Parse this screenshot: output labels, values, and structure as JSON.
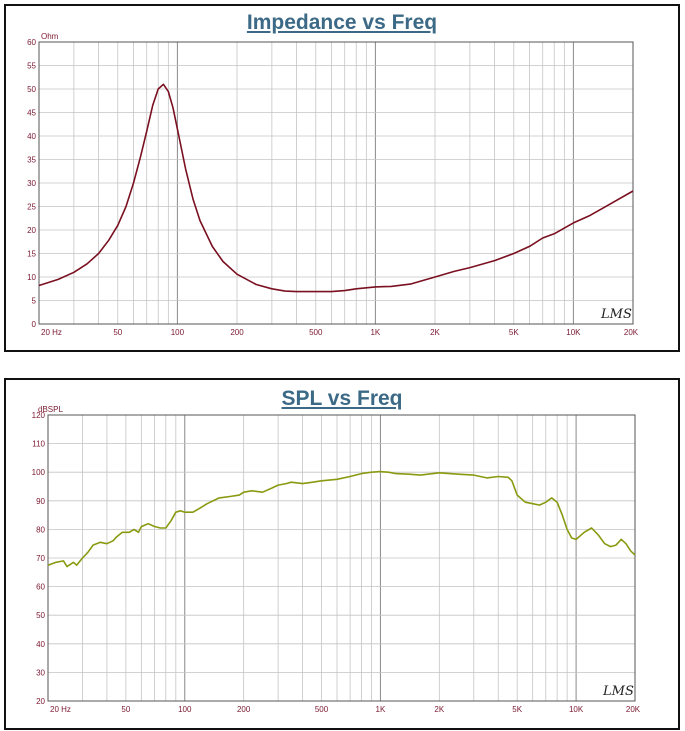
{
  "charts": [
    {
      "id": "imp",
      "chart_data": {
        "type": "line",
        "title": "Impedance vs Freq",
        "ylabel": "Ohm",
        "xscale": "log",
        "xlim": [
          20,
          20000
        ],
        "ylim": [
          0,
          60
        ],
        "ytick_step": 5,
        "x_tick_labels": [
          {
            "x": 20,
            "label": "20  Hz"
          },
          {
            "x": 50,
            "label": "50"
          },
          {
            "x": 100,
            "label": "100"
          },
          {
            "x": 200,
            "label": "200"
          },
          {
            "x": 500,
            "label": "500"
          },
          {
            "x": 1000,
            "label": "1K"
          },
          {
            "x": 2000,
            "label": "2K"
          },
          {
            "x": 5000,
            "label": "5K"
          },
          {
            "x": 10000,
            "label": "10K"
          },
          {
            "x": 20000,
            "label": "20K"
          }
        ],
        "grid": true,
        "series": [
          {
            "color": "#7a1020",
            "points": [
              [
                20,
                8.2
              ],
              [
                25,
                9.5
              ],
              [
                30,
                11
              ],
              [
                35,
                12.8
              ],
              [
                40,
                15
              ],
              [
                45,
                17.8
              ],
              [
                50,
                21
              ],
              [
                55,
                25
              ],
              [
                60,
                30
              ],
              [
                65,
                35.5
              ],
              [
                70,
                41
              ],
              [
                75,
                46.5
              ],
              [
                80,
                50
              ],
              [
                85,
                51
              ],
              [
                90,
                49.5
              ],
              [
                95,
                46
              ],
              [
                100,
                41.5
              ],
              [
                110,
                33
              ],
              [
                120,
                26.5
              ],
              [
                130,
                22
              ],
              [
                150,
                16.5
              ],
              [
                170,
                13.3
              ],
              [
                200,
                10.6
              ],
              [
                250,
                8.4
              ],
              [
                300,
                7.5
              ],
              [
                350,
                7.0
              ],
              [
                400,
                6.9
              ],
              [
                500,
                6.9
              ],
              [
                600,
                6.9
              ],
              [
                700,
                7.1
              ],
              [
                800,
                7.5
              ],
              [
                1000,
                7.9
              ],
              [
                1200,
                8.0
              ],
              [
                1500,
                8.5
              ],
              [
                2000,
                10
              ],
              [
                2500,
                11.2
              ],
              [
                3000,
                12
              ],
              [
                4000,
                13.5
              ],
              [
                5000,
                15
              ],
              [
                6000,
                16.5
              ],
              [
                7000,
                18.3
              ],
              [
                8000,
                19.2
              ],
              [
                10000,
                21.5
              ],
              [
                12000,
                23
              ],
              [
                15000,
                25.3
              ],
              [
                20000,
                28.3
              ]
            ]
          }
        ]
      },
      "logo": "LMS"
    },
    {
      "id": "spl",
      "chart_data": {
        "type": "line",
        "title": "SPL vs Freq",
        "ylabel": "dBSPL",
        "xscale": "log",
        "xlim": [
          20,
          20000
        ],
        "ylim": [
          20,
          120
        ],
        "ytick_step": 10,
        "x_tick_labels": [
          {
            "x": 20,
            "label": "20  Hz"
          },
          {
            "x": 50,
            "label": "50"
          },
          {
            "x": 100,
            "label": "100"
          },
          {
            "x": 200,
            "label": "200"
          },
          {
            "x": 500,
            "label": "500"
          },
          {
            "x": 1000,
            "label": "1K"
          },
          {
            "x": 2000,
            "label": "2K"
          },
          {
            "x": 5000,
            "label": "5K"
          },
          {
            "x": 10000,
            "label": "10K"
          },
          {
            "x": 20000,
            "label": "20K"
          }
        ],
        "grid": true,
        "series": [
          {
            "color": "#8a9a10",
            "points": [
              [
                20,
                67.5
              ],
              [
                22,
                68.5
              ],
              [
                24,
                69
              ],
              [
                25,
                67
              ],
              [
                27,
                68.5
              ],
              [
                28,
                67.5
              ],
              [
                30,
                70
              ],
              [
                32,
                72
              ],
              [
                34,
                74.5
              ],
              [
                37,
                75.5
              ],
              [
                40,
                75
              ],
              [
                43,
                76
              ],
              [
                45,
                77.5
              ],
              [
                48,
                79
              ],
              [
                52,
                79
              ],
              [
                55,
                80
              ],
              [
                58,
                79
              ],
              [
                60,
                81
              ],
              [
                65,
                82
              ],
              [
                70,
                81
              ],
              [
                75,
                80.5
              ],
              [
                80,
                80.5
              ],
              [
                85,
                83
              ],
              [
                90,
                86
              ],
              [
                95,
                86.5
              ],
              [
                100,
                86
              ],
              [
                110,
                86
              ],
              [
                120,
                87.5
              ],
              [
                130,
                89
              ],
              [
                150,
                91
              ],
              [
                170,
                91.5
              ],
              [
                190,
                92
              ],
              [
                200,
                93
              ],
              [
                220,
                93.5
              ],
              [
                250,
                93
              ],
              [
                280,
                94.5
              ],
              [
                300,
                95.5
              ],
              [
                330,
                96
              ],
              [
                350,
                96.5
              ],
              [
                400,
                96
              ],
              [
                450,
                96.5
              ],
              [
                500,
                97
              ],
              [
                600,
                97.5
              ],
              [
                700,
                98.5
              ],
              [
                800,
                99.5
              ],
              [
                900,
                100
              ],
              [
                1000,
                100.2
              ],
              [
                1100,
                100
              ],
              [
                1200,
                99.5
              ],
              [
                1400,
                99.3
              ],
              [
                1600,
                99
              ],
              [
                2000,
                99.8
              ],
              [
                2500,
                99.3
              ],
              [
                3000,
                99
              ],
              [
                3500,
                98
              ],
              [
                4000,
                98.5
              ],
              [
                4500,
                98.2
              ],
              [
                4700,
                97
              ],
              [
                5000,
                92
              ],
              [
                5500,
                89.5
              ],
              [
                6000,
                89
              ],
              [
                6500,
                88.5
              ],
              [
                7000,
                89.5
              ],
              [
                7500,
                91
              ],
              [
                8000,
                89.5
              ],
              [
                8500,
                85
              ],
              [
                9000,
                80
              ],
              [
                9500,
                77
              ],
              [
                10000,
                76.5
              ],
              [
                11000,
                79
              ],
              [
                12000,
                80.5
              ],
              [
                13000,
                78
              ],
              [
                14000,
                75
              ],
              [
                15000,
                74
              ],
              [
                16000,
                74.5
              ],
              [
                17000,
                76.5
              ],
              [
                18000,
                75
              ],
              [
                19000,
                72.5
              ],
              [
                20000,
                71
              ]
            ]
          }
        ]
      },
      "logo": "LMS"
    }
  ]
}
